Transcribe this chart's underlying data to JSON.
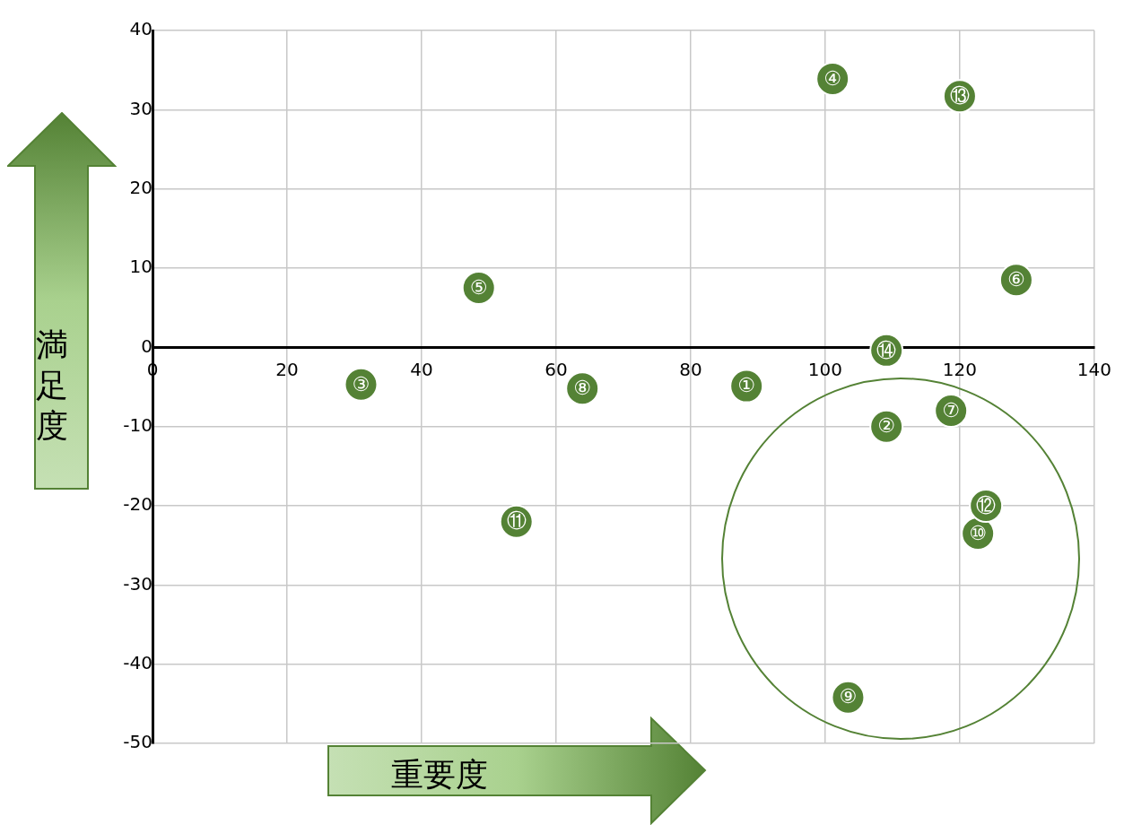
{
  "chart_data": {
    "type": "scatter",
    "xlabel": "重要度",
    "ylabel": "満足度",
    "x": [
      88.3,
      109.1,
      31.0,
      101.1,
      48.5,
      128.4,
      118.7,
      63.9,
      103.4,
      122.7,
      54.1,
      123.9,
      120.0,
      109.1
    ],
    "values": [
      -4.9,
      -10.0,
      -4.7,
      33.9,
      7.5,
      8.5,
      -8.0,
      -5.2,
      -44.2,
      -23.5,
      -22.0,
      -20.0,
      31.7,
      -0.4
    ],
    "value_labels": [
      "①",
      "②",
      "③",
      "④",
      "⑤",
      "⑥",
      "⑦",
      "⑧",
      "⑨",
      "⑩",
      "⑪",
      "⑫",
      "⑬",
      "⑭"
    ],
    "color": "#548235",
    "marker": "circle",
    "grid": true,
    "xlim": [
      0,
      140
    ],
    "xticks": [
      0,
      20,
      40,
      60,
      80,
      100,
      120,
      140
    ],
    "ylim": [
      -50,
      40
    ],
    "yticks": [
      -50,
      -40,
      -30,
      -20,
      -10,
      0,
      10,
      20,
      30,
      40
    ]
  }
}
